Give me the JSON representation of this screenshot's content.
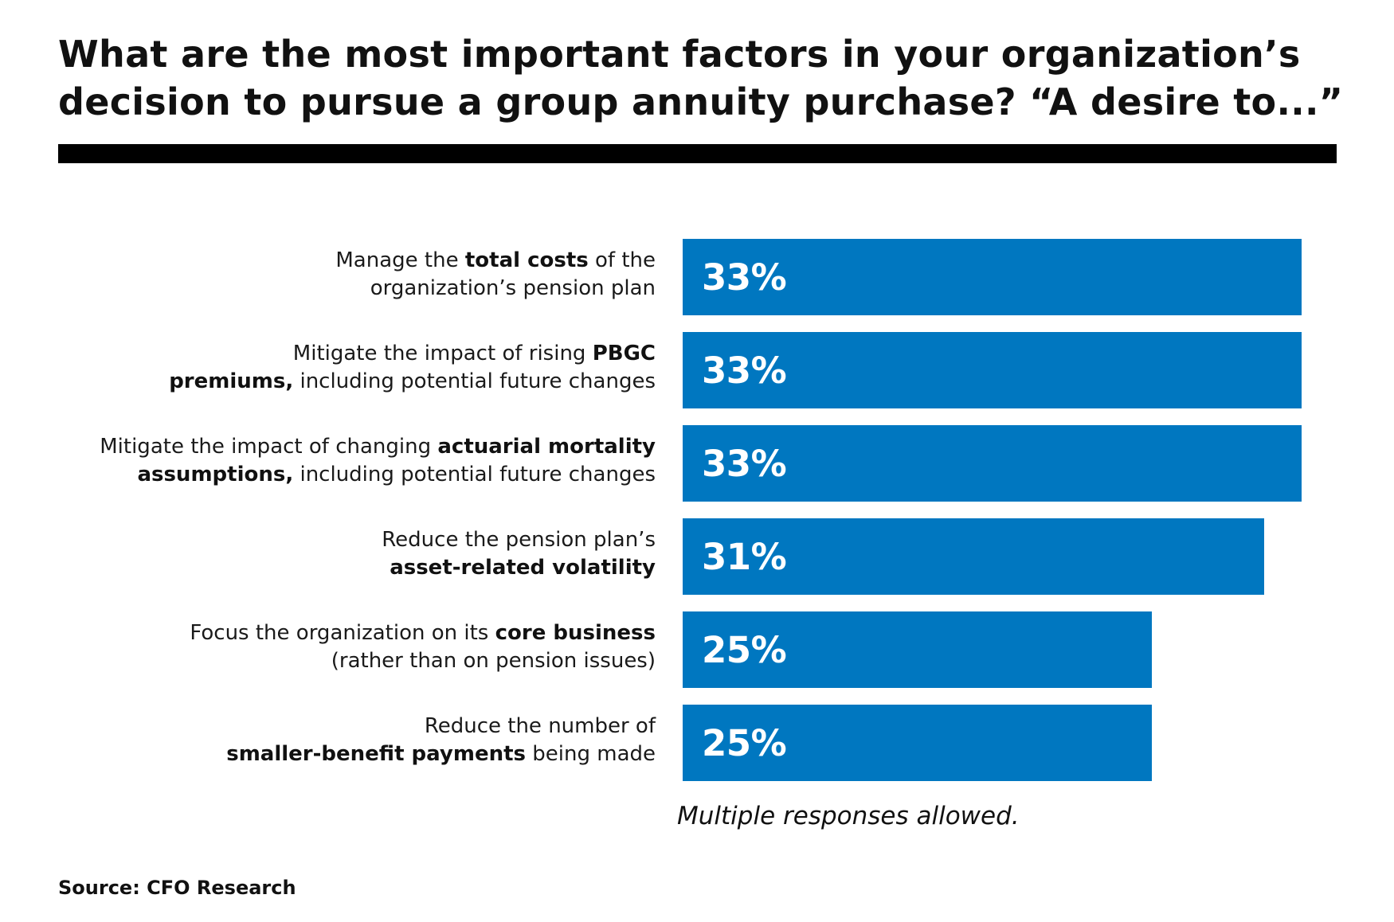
{
  "title": {
    "line1": "What are the most important factors in your organization’s",
    "line2": "decision to pursue a group annuity purchase? “A desire to...”"
  },
  "note": "Multiple responses allowed.",
  "source": "Source: CFO Research",
  "colors": {
    "bar": "#0077c0",
    "rule": "#000000",
    "value_text": "#ffffff"
  },
  "chart_data": {
    "type": "bar",
    "orientation": "horizontal",
    "title": "What are the most important factors in your organization’s decision to pursue a group annuity purchase? “A desire to...”",
    "xlabel": "",
    "ylabel": "",
    "value_suffix": "%",
    "xlim": [
      0,
      33
    ],
    "categories": [
      {
        "lines": [
          [
            {
              "t": "Manage the "
            },
            {
              "t": "total costs",
              "b": true
            },
            {
              "t": " of the"
            }
          ],
          [
            {
              "t": "organization’s pension plan"
            }
          ]
        ]
      },
      {
        "lines": [
          [
            {
              "t": "Mitigate the impact of rising "
            },
            {
              "t": "PBGC",
              "b": true
            }
          ],
          [
            {
              "t": "premiums,",
              "b": true
            },
            {
              "t": " including potential future changes"
            }
          ]
        ]
      },
      {
        "lines": [
          [
            {
              "t": "Mitigate the impact of changing "
            },
            {
              "t": "actuarial mortality",
              "b": true
            }
          ],
          [
            {
              "t": "assumptions,",
              "b": true
            },
            {
              "t": " including potential future changes"
            }
          ]
        ]
      },
      {
        "lines": [
          [
            {
              "t": "Reduce the pension plan’s"
            }
          ],
          [
            {
              "t": "asset-related volatility",
              "b": true
            }
          ]
        ]
      },
      {
        "lines": [
          [
            {
              "t": "Focus the organization on its "
            },
            {
              "t": "core business",
              "b": true
            }
          ],
          [
            {
              "t": "(rather than on pension issues)"
            }
          ]
        ]
      },
      {
        "lines": [
          [
            {
              "t": "Reduce the number of"
            }
          ],
          [
            {
              "t": "smaller-benefit payments",
              "b": true
            },
            {
              "t": " being made"
            }
          ]
        ]
      }
    ],
    "values": [
      33,
      33,
      33,
      31,
      25,
      25
    ],
    "value_labels": [
      "33%",
      "33%",
      "33%",
      "31%",
      "25%",
      "25%"
    ],
    "grid": false,
    "legend": "none"
  }
}
